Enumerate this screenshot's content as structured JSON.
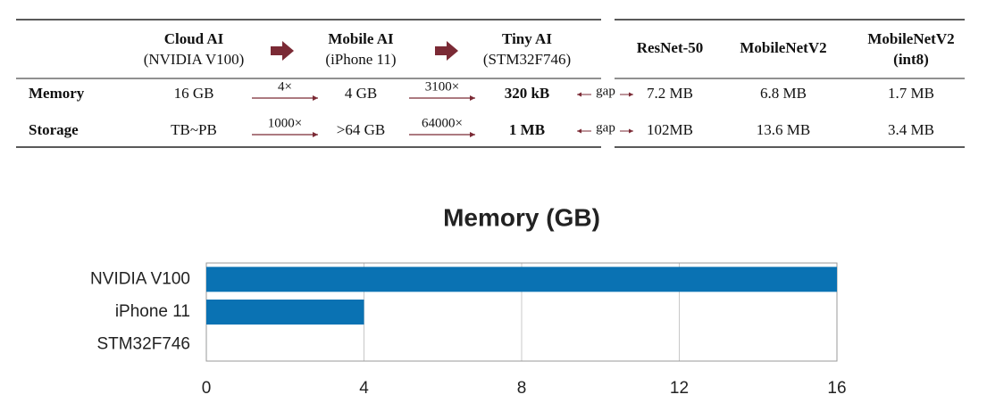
{
  "table": {
    "headers": [
      {
        "title": "Cloud AI",
        "subtitle": "(NVIDIA V100)"
      },
      {
        "title": "Mobile AI",
        "subtitle": "(iPhone 11)"
      },
      {
        "title": "Tiny AI",
        "subtitle": "(STM32F746)"
      },
      {
        "title": "ResNet-50"
      },
      {
        "title": "MobileNetV2"
      },
      {
        "title": "MobileNetV2",
        "subtitle": "(int8)"
      }
    ],
    "rows": [
      {
        "label": "Memory",
        "cells": [
          "16 GB",
          "4 GB",
          "320 kB",
          "7.2 MB",
          "6.8 MB",
          "1.7 MB"
        ],
        "ratios": [
          "4×",
          "3100×"
        ],
        "gap": "gap"
      },
      {
        "label": "Storage",
        "cells": [
          "TB~PB",
          ">64 GB",
          "1 MB",
          "102MB",
          "13.6 MB",
          "3.4 MB"
        ],
        "ratios": [
          "1000×",
          "64000×"
        ],
        "gap": "gap"
      }
    ]
  },
  "chart_data": {
    "type": "hbar",
    "title": "Memory (GB)",
    "categories": [
      "NVIDIA V100",
      "iPhone 11",
      "STM32F746"
    ],
    "values": [
      16,
      4,
      0.00032
    ],
    "color": "#0a72b3",
    "xlim": [
      0,
      16
    ],
    "xticks": [
      0,
      4,
      8,
      12,
      16
    ],
    "grid": true
  }
}
